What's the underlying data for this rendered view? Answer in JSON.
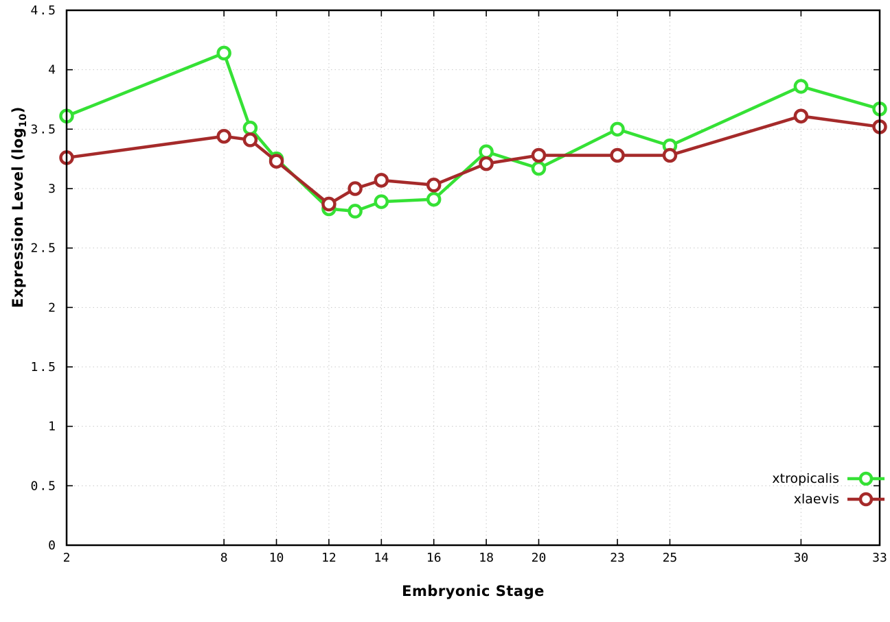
{
  "chart": {
    "ylabel_prefix": "Expression Level (log",
    "ylabel_sub": "10",
    "ylabel_suffix": ")",
    "xlabel": "Embryonic Stage",
    "background": "#ffffff",
    "border_color": "#000000",
    "grid_color": "#c8c8c8"
  },
  "chart_data": {
    "type": "line",
    "title": "",
    "xlabel": "Embryonic Stage",
    "ylabel": "Expression Level (log10)",
    "x": [
      2,
      8,
      9,
      10,
      12,
      13,
      14,
      16,
      18,
      20,
      23,
      25,
      30,
      33
    ],
    "series": [
      {
        "name": "xtropicalis",
        "color": "#35e135",
        "values": [
          3.61,
          4.14,
          3.51,
          3.25,
          2.83,
          2.81,
          2.89,
          2.91,
          3.31,
          3.17,
          3.5,
          3.36,
          3.86,
          3.67
        ]
      },
      {
        "name": "xlaevis",
        "color": "#a52a2a",
        "values": [
          3.26,
          3.44,
          3.41,
          3.23,
          2.87,
          3.0,
          3.07,
          3.03,
          3.21,
          3.28,
          3.28,
          3.28,
          3.61,
          3.52
        ]
      }
    ],
    "xlim": [
      2,
      33
    ],
    "ylim": [
      0,
      4.5
    ],
    "xticks": [
      2,
      8,
      10,
      12,
      14,
      16,
      18,
      20,
      23,
      25,
      30,
      33
    ],
    "xtick_labels": [
      "2",
      "8",
      "10",
      "12",
      "14",
      "16",
      "18",
      "20",
      "23",
      "25",
      "30",
      "33"
    ],
    "yticks": [
      0,
      0.5,
      1,
      1.5,
      2,
      2.5,
      3,
      3.5,
      4,
      4.5
    ],
    "ytick_labels": [
      "0",
      "0.5",
      "1",
      "1.5",
      "2",
      "2.5",
      "3",
      "3.5",
      "4",
      "4.5"
    ],
    "grid": true,
    "legend_position": "inside-bottom-right",
    "marker": "open-circle"
  }
}
